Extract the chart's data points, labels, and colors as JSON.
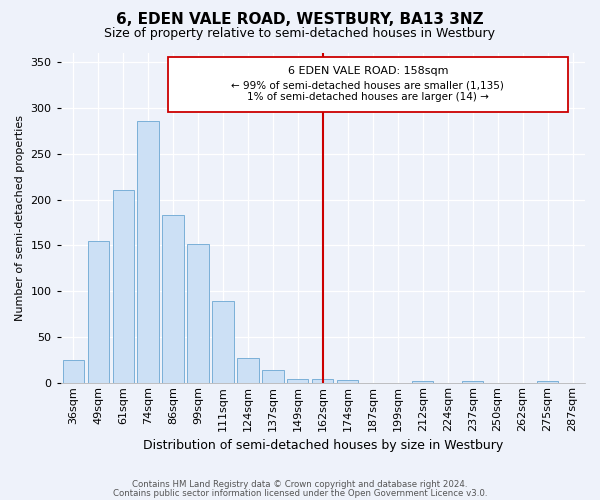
{
  "title": "6, EDEN VALE ROAD, WESTBURY, BA13 3NZ",
  "subtitle": "Size of property relative to semi-detached houses in Westbury",
  "xlabel": "Distribution of semi-detached houses by size in Westbury",
  "ylabel": "Number of semi-detached properties",
  "bin_labels": [
    "36sqm",
    "49sqm",
    "61sqm",
    "74sqm",
    "86sqm",
    "99sqm",
    "111sqm",
    "124sqm",
    "137sqm",
    "149sqm",
    "162sqm",
    "174sqm",
    "187sqm",
    "199sqm",
    "212sqm",
    "224sqm",
    "237sqm",
    "250sqm",
    "262sqm",
    "275sqm",
    "287sqm"
  ],
  "bar_heights": [
    25,
    155,
    210,
    285,
    183,
    152,
    90,
    28,
    14,
    5,
    5,
    4,
    0,
    0,
    3,
    0,
    2,
    0,
    0,
    2,
    0
  ],
  "vline_pos": 10,
  "vline_label": "6 EDEN VALE ROAD: 158sqm",
  "annotation_line1": "← 99% of semi-detached houses are smaller (1,135)",
  "annotation_line2": "1% of semi-detached houses are larger (14) →",
  "bar_color": "#cce0f5",
  "bar_edge_color": "#7ab0d8",
  "vline_color": "#cc0000",
  "box_edge_color": "#cc0000",
  "box_facecolor": "#ffffff",
  "ylim": [
    0,
    360
  ],
  "yticks": [
    0,
    50,
    100,
    150,
    200,
    250,
    300,
    350
  ],
  "footer1": "Contains HM Land Registry data © Crown copyright and database right 2024.",
  "footer2": "Contains public sector information licensed under the Open Government Licence v3.0.",
  "bg_color": "#eef2fa",
  "grid_color": "#ffffff",
  "title_fontsize": 11,
  "subtitle_fontsize": 9,
  "xlabel_fontsize": 9,
  "ylabel_fontsize": 8,
  "tick_fontsize": 8,
  "annotation_title_fontsize": 8,
  "annotation_body_fontsize": 7.5
}
